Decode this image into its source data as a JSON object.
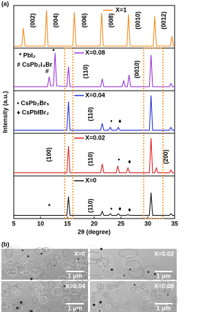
{
  "panel_a_label": "(a)",
  "y_label": "Intensity (a.u.)",
  "chart_data": [
    {
      "type": "line",
      "xlim": [
        5,
        35
      ],
      "ylim": [
        0,
        1
      ],
      "x": [
        5,
        6.5,
        6.8,
        7.1,
        10.8,
        11.1,
        11.4,
        16.0,
        16.3,
        16.6,
        21.1,
        21.4,
        21.7,
        26.1,
        26.4,
        26.7,
        31.0,
        31.3,
        31.6,
        34.2,
        34.5,
        34.8,
        35
      ],
      "series": [
        {
          "name": "X=1",
          "color": "#f28c1a",
          "values": [
            0.05,
            0.05,
            0.5,
            0.05,
            0.05,
            0.95,
            0.05,
            0.05,
            0.9,
            0.05,
            0.05,
            0.88,
            0.05,
            0.05,
            0.85,
            0.05,
            0.05,
            0.8,
            0.05,
            0.05,
            0.3,
            0.05,
            0.05
          ]
        }
      ],
      "annotations": [
        "(002)",
        "(004)",
        "(006)",
        "(008)",
        "(0010)",
        "(0012)"
      ]
    },
    {
      "type": "line",
      "xlim": [
        5,
        35
      ],
      "ylim": [
        0,
        1
      ],
      "x": [
        5,
        11.3,
        11.6,
        11.9,
        12.4,
        12.7,
        13.0,
        14.9,
        15.2,
        15.5,
        21.2,
        21.5,
        21.8,
        25.2,
        25.5,
        25.8,
        26.2,
        26.5,
        26.8,
        30.3,
        30.6,
        30.9,
        34.0,
        34.3,
        34.6,
        35
      ],
      "series": [
        {
          "name": "X=0.08",
          "color": "#9b30d9",
          "values": [
            0.1,
            0.1,
            0.35,
            0.12,
            0.12,
            0.95,
            0.12,
            0.1,
            0.6,
            0.1,
            0.1,
            0.3,
            0.1,
            0.1,
            0.25,
            0.1,
            0.1,
            0.4,
            0.1,
            0.1,
            0.9,
            0.1,
            0.1,
            0.18,
            0.1,
            0.1
          ]
        }
      ],
      "annotations": [
        "* PbI₂",
        "# CsPb₂I₄Br",
        "*",
        "#",
        "(110)",
        "(0010)"
      ]
    },
    {
      "type": "line",
      "xlim": [
        5,
        35
      ],
      "ylim": [
        0,
        1
      ],
      "x": [
        5,
        14.9,
        15.2,
        15.5,
        21.2,
        21.5,
        21.8,
        22.7,
        23.0,
        23.3,
        24.2,
        24.5,
        24.8,
        30.3,
        30.6,
        30.9,
        34.0,
        34.3,
        34.6,
        35
      ],
      "series": [
        {
          "name": "X=0.04",
          "color": "#1f2fd6",
          "values": [
            0.08,
            0.08,
            0.8,
            0.08,
            0.08,
            0.25,
            0.08,
            0.08,
            0.15,
            0.08,
            0.08,
            0.15,
            0.08,
            0.08,
            0.95,
            0.08,
            0.08,
            0.15,
            0.08,
            0.08
          ]
        }
      ],
      "annotations": [
        "• CsPb₂Br₅",
        "♦ CsPbIBr₂",
        "(110)",
        "•",
        "♦"
      ]
    },
    {
      "type": "line",
      "xlim": [
        5,
        35
      ],
      "ylim": [
        0,
        1
      ],
      "x": [
        5,
        14.9,
        15.2,
        15.5,
        21.2,
        21.5,
        21.8,
        24.1,
        24.4,
        24.7,
        26.0,
        26.3,
        26.6,
        30.3,
        30.6,
        30.9,
        31.3,
        31.6,
        31.9,
        34.0,
        34.3,
        34.6,
        35
      ],
      "series": [
        {
          "name": "X=0.02",
          "color": "#e01b1b",
          "values": [
            0.08,
            0.08,
            0.75,
            0.08,
            0.08,
            0.3,
            0.08,
            0.08,
            0.25,
            0.08,
            0.08,
            0.2,
            0.08,
            0.08,
            0.95,
            0.08,
            0.08,
            0.2,
            0.08,
            0.08,
            0.15,
            0.08,
            0.08
          ]
        }
      ],
      "annotations": [
        "(100)",
        "(110)",
        "•",
        "♦",
        "(200)"
      ]
    },
    {
      "type": "line",
      "xlim": [
        5,
        35
      ],
      "ylim": [
        0,
        1
      ],
      "x": [
        5,
        14.9,
        15.2,
        15.5,
        21.2,
        21.5,
        21.8,
        22.7,
        23.0,
        23.3,
        24.2,
        24.5,
        24.8,
        26.0,
        26.3,
        26.6,
        30.3,
        30.6,
        30.9,
        34.0,
        34.3,
        34.6,
        35
      ],
      "series": [
        {
          "name": "X=0",
          "color": "#111111",
          "values": [
            0.08,
            0.08,
            0.55,
            0.08,
            0.08,
            0.18,
            0.08,
            0.08,
            0.12,
            0.08,
            0.08,
            0.12,
            0.08,
            0.08,
            0.1,
            0.08,
            0.08,
            0.65,
            0.08,
            0.08,
            0.12,
            0.08,
            0.08
          ]
        }
      ],
      "annotations": [
        "*",
        "(110)",
        "•",
        "♦",
        "♦"
      ],
      "xticks": [
        5,
        10,
        15,
        20,
        25,
        30,
        35
      ],
      "x_label": "2θ (degree)"
    }
  ],
  "panel_b_label": "(b)",
  "images": [
    {
      "label": "X=0",
      "scale": "1 μm"
    },
    {
      "label": "X=0.02",
      "scale": "1 μm"
    },
    {
      "label": "X=0.04",
      "scale": "1 μm"
    },
    {
      "label": "X=0.08",
      "scale": "1 μm"
    }
  ]
}
